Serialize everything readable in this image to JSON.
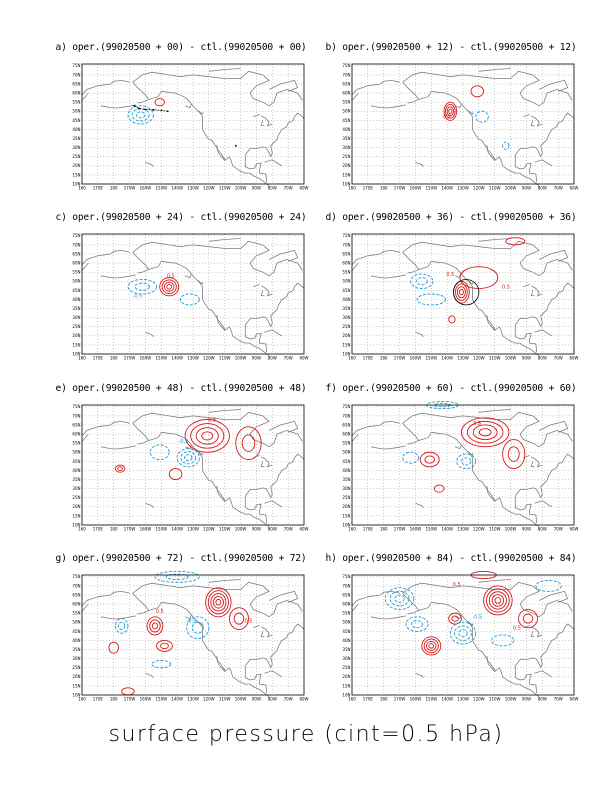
{
  "footer": {
    "title": "surface pressure (cint=0.5 hPa)"
  },
  "colors": {
    "positive": "#d81818",
    "negative": "#1e9ad6",
    "coast": "#7f7f7f",
    "grid": "#999999",
    "frame": "#000000"
  },
  "axes": {
    "lat_labels": [
      "75N",
      "70N",
      "65N",
      "60N",
      "55N",
      "50N",
      "45N",
      "40N",
      "35N",
      "30N",
      "25N",
      "20N",
      "15N",
      "10N"
    ],
    "lon_labels": [
      "160",
      "170E",
      "180",
      "170W",
      "160W",
      "150W",
      "140W",
      "130W",
      "120W",
      "110W",
      "100W",
      "90W",
      "80W",
      "70W",
      "60W"
    ]
  },
  "panels": [
    {
      "title": "a) oper.(99020500 + 00) - ctl.(99020500 + 00)",
      "contours": [
        {
          "kind": "neg",
          "lon": -163,
          "lat": 48,
          "rx": 8,
          "ry": 5,
          "n": 3
        },
        {
          "kind": "pos",
          "lon": -151,
          "lat": 55,
          "rx": 3,
          "ry": 2,
          "n": 1
        }
      ],
      "track": true
    },
    {
      "title": "b) oper.(99020500 + 12) - ctl.(99020500 + 12)",
      "contours": [
        {
          "kind": "pos",
          "lon": -138,
          "lat": 50,
          "rx": 4,
          "ry": 5,
          "n": 4
        },
        {
          "kind": "pos",
          "lon": -121,
          "lat": 61,
          "rx": 4,
          "ry": 3,
          "n": 1
        },
        {
          "kind": "neg",
          "lon": -118,
          "lat": 47,
          "rx": 4,
          "ry": 3,
          "n": 1
        },
        {
          "kind": "neg",
          "lon": -103,
          "lat": 31,
          "rx": 2,
          "ry": 2,
          "n": 1
        }
      ],
      "labels": [
        {
          "text": "0.5",
          "kind": "pos",
          "lon": -140,
          "lat": 46
        }
      ]
    },
    {
      "title": "c) oper.(99020500 + 24) - ctl.(99020500 + 24)",
      "contours": [
        {
          "kind": "pos",
          "lon": -145,
          "lat": 47,
          "rx": 6,
          "ry": 5,
          "n": 4
        },
        {
          "kind": "neg",
          "lon": -162,
          "lat": 47,
          "rx": 9,
          "ry": 4,
          "n": 2
        },
        {
          "kind": "neg",
          "lon": -132,
          "lat": 40,
          "rx": 6,
          "ry": 3,
          "n": 1
        }
      ],
      "labels": [
        {
          "text": "0.5",
          "kind": "pos",
          "lon": -144,
          "lat": 52
        },
        {
          "text": "-0.5",
          "kind": "neg",
          "lon": -165,
          "lat": 41
        }
      ]
    },
    {
      "title": "d) oper.(99020500 + 36) - ctl.(99020500 + 36)",
      "contours": [
        {
          "kind": "pos",
          "lon": -131,
          "lat": 44,
          "rx": 5,
          "ry": 6,
          "n": 4
        },
        {
          "kind": "pos",
          "lon": -120,
          "lat": 52,
          "rx": 12,
          "ry": 6,
          "n": 1
        },
        {
          "kind": "pos",
          "lon": -97,
          "lat": 72,
          "rx": 6,
          "ry": 2,
          "n": 1
        },
        {
          "kind": "neg",
          "lon": -156,
          "lat": 50,
          "rx": 7,
          "ry": 4,
          "n": 2
        },
        {
          "kind": "neg",
          "lon": -150,
          "lat": 40,
          "rx": 9,
          "ry": 3,
          "n": 1
        },
        {
          "kind": "pos",
          "lon": -137,
          "lat": 29,
          "rx": 2,
          "ry": 2,
          "n": 1
        }
      ],
      "circle": {
        "lon": -128,
        "lat": 44,
        "r": 8
      },
      "labels": [
        {
          "text": "0.5",
          "kind": "pos",
          "lon": -138,
          "lat": 53
        },
        {
          "text": "0.5",
          "kind": "pos",
          "lon": -103,
          "lat": 46
        }
      ]
    },
    {
      "title": "e) oper.(99020500 + 48) - ctl.(99020500 + 48)",
      "contours": [
        {
          "kind": "pos",
          "lon": -121,
          "lat": 59,
          "rx": 14,
          "ry": 9,
          "n": 4
        },
        {
          "kind": "pos",
          "lon": -95,
          "lat": 55,
          "rx": 8,
          "ry": 9,
          "n": 2
        },
        {
          "kind": "pos",
          "lon": -176,
          "lat": 41,
          "rx": 3,
          "ry": 2,
          "n": 2
        },
        {
          "kind": "pos",
          "lon": -141,
          "lat": 38,
          "rx": 4,
          "ry": 3,
          "n": 1
        },
        {
          "kind": "neg",
          "lon": -133,
          "lat": 47,
          "rx": 7,
          "ry": 5,
          "n": 3
        },
        {
          "kind": "neg",
          "lon": -151,
          "lat": 50,
          "rx": 6,
          "ry": 4,
          "n": 1
        }
      ],
      "labels": [
        {
          "text": "0.5",
          "kind": "pos",
          "lon": -118,
          "lat": 67
        },
        {
          "text": "-0.5",
          "kind": "neg",
          "lon": -136,
          "lat": 55
        }
      ]
    },
    {
      "title": "f) oper.(99020500 + 60) - ctl.(99020500 + 60)",
      "contours": [
        {
          "kind": "pos",
          "lon": -116,
          "lat": 61,
          "rx": 15,
          "ry": 8,
          "n": 4
        },
        {
          "kind": "pos",
          "lon": -98,
          "lat": 49,
          "rx": 7,
          "ry": 8,
          "n": 2
        },
        {
          "kind": "pos",
          "lon": -151,
          "lat": 46,
          "rx": 6,
          "ry": 4,
          "n": 2
        },
        {
          "kind": "pos",
          "lon": -145,
          "lat": 30,
          "rx": 3,
          "ry": 2,
          "n": 1
        },
        {
          "kind": "neg",
          "lon": -143,
          "lat": 76,
          "rx": 10,
          "ry": 2,
          "n": 2
        },
        {
          "kind": "neg",
          "lon": -128,
          "lat": 45,
          "rx": 6,
          "ry": 4,
          "n": 2
        },
        {
          "kind": "neg",
          "lon": -163,
          "lat": 47,
          "rx": 5,
          "ry": 3,
          "n": 1
        }
      ],
      "labels": [
        {
          "text": "0.5",
          "kind": "pos",
          "lon": -121,
          "lat": 65
        }
      ]
    },
    {
      "title": "g) oper.(99020500 + 72) - ctl.(99020500 + 72)",
      "contours": [
        {
          "kind": "pos",
          "lon": -114,
          "lat": 61,
          "rx": 8,
          "ry": 8,
          "n": 5
        },
        {
          "kind": "pos",
          "lon": -154,
          "lat": 48,
          "rx": 5,
          "ry": 5,
          "n": 3
        },
        {
          "kind": "pos",
          "lon": -148,
          "lat": 37,
          "rx": 5,
          "ry": 3,
          "n": 2
        },
        {
          "kind": "pos",
          "lon": -101,
          "lat": 52,
          "rx": 6,
          "ry": 6,
          "n": 2
        },
        {
          "kind": "pos",
          "lon": -180,
          "lat": 36,
          "rx": 3,
          "ry": 3,
          "n": 1
        },
        {
          "kind": "pos",
          "lon": -171,
          "lat": 12,
          "rx": 4,
          "ry": 2,
          "n": 1
        },
        {
          "kind": "neg",
          "lon": -140,
          "lat": 75,
          "rx": 14,
          "ry": 3,
          "n": 2
        },
        {
          "kind": "neg",
          "lon": -127,
          "lat": 47,
          "rx": 7,
          "ry": 6,
          "n": 2
        },
        {
          "kind": "neg",
          "lon": -175,
          "lat": 48,
          "rx": 4,
          "ry": 4,
          "n": 2
        },
        {
          "kind": "neg",
          "lon": -150,
          "lat": 27,
          "rx": 6,
          "ry": 2,
          "n": 1
        }
      ],
      "labels": [
        {
          "text": "0.5",
          "kind": "pos",
          "lon": -151,
          "lat": 55
        },
        {
          "text": "-0.5",
          "kind": "neg",
          "lon": -131,
          "lat": 50
        },
        {
          "text": "0.5",
          "kind": "pos",
          "lon": -95,
          "lat": 50
        }
      ]
    },
    {
      "title": "h) oper.(99020500 + 84) - ctl.(99020500 + 84)",
      "contours": [
        {
          "kind": "pos",
          "lon": -108,
          "lat": 62,
          "rx": 9,
          "ry": 8,
          "n": 5
        },
        {
          "kind": "pos",
          "lon": -150,
          "lat": 37,
          "rx": 6,
          "ry": 5,
          "n": 4
        },
        {
          "kind": "pos",
          "lon": -89,
          "lat": 52,
          "rx": 6,
          "ry": 5,
          "n": 2
        },
        {
          "kind": "pos",
          "lon": -135,
          "lat": 52,
          "rx": 4,
          "ry": 3,
          "n": 2
        },
        {
          "kind": "pos",
          "lon": -117,
          "lat": 76,
          "rx": 8,
          "ry": 2,
          "n": 1
        },
        {
          "kind": "neg",
          "lon": -170,
          "lat": 63,
          "rx": 9,
          "ry": 6,
          "n": 3
        },
        {
          "kind": "neg",
          "lon": -130,
          "lat": 44,
          "rx": 8,
          "ry": 6,
          "n": 3
        },
        {
          "kind": "neg",
          "lon": -159,
          "lat": 49,
          "rx": 7,
          "ry": 4,
          "n": 2
        },
        {
          "kind": "neg",
          "lon": -105,
          "lat": 40,
          "rx": 7,
          "ry": 3,
          "n": 1
        },
        {
          "kind": "neg",
          "lon": -76,
          "lat": 70,
          "rx": 8,
          "ry": 3,
          "n": 1
        }
      ],
      "labels": [
        {
          "text": "0.5",
          "kind": "pos",
          "lon": -134,
          "lat": 70
        },
        {
          "text": "-0.5",
          "kind": "neg",
          "lon": -121,
          "lat": 52
        },
        {
          "text": "0.5",
          "kind": "pos",
          "lon": -96,
          "lat": 46
        }
      ]
    }
  ]
}
